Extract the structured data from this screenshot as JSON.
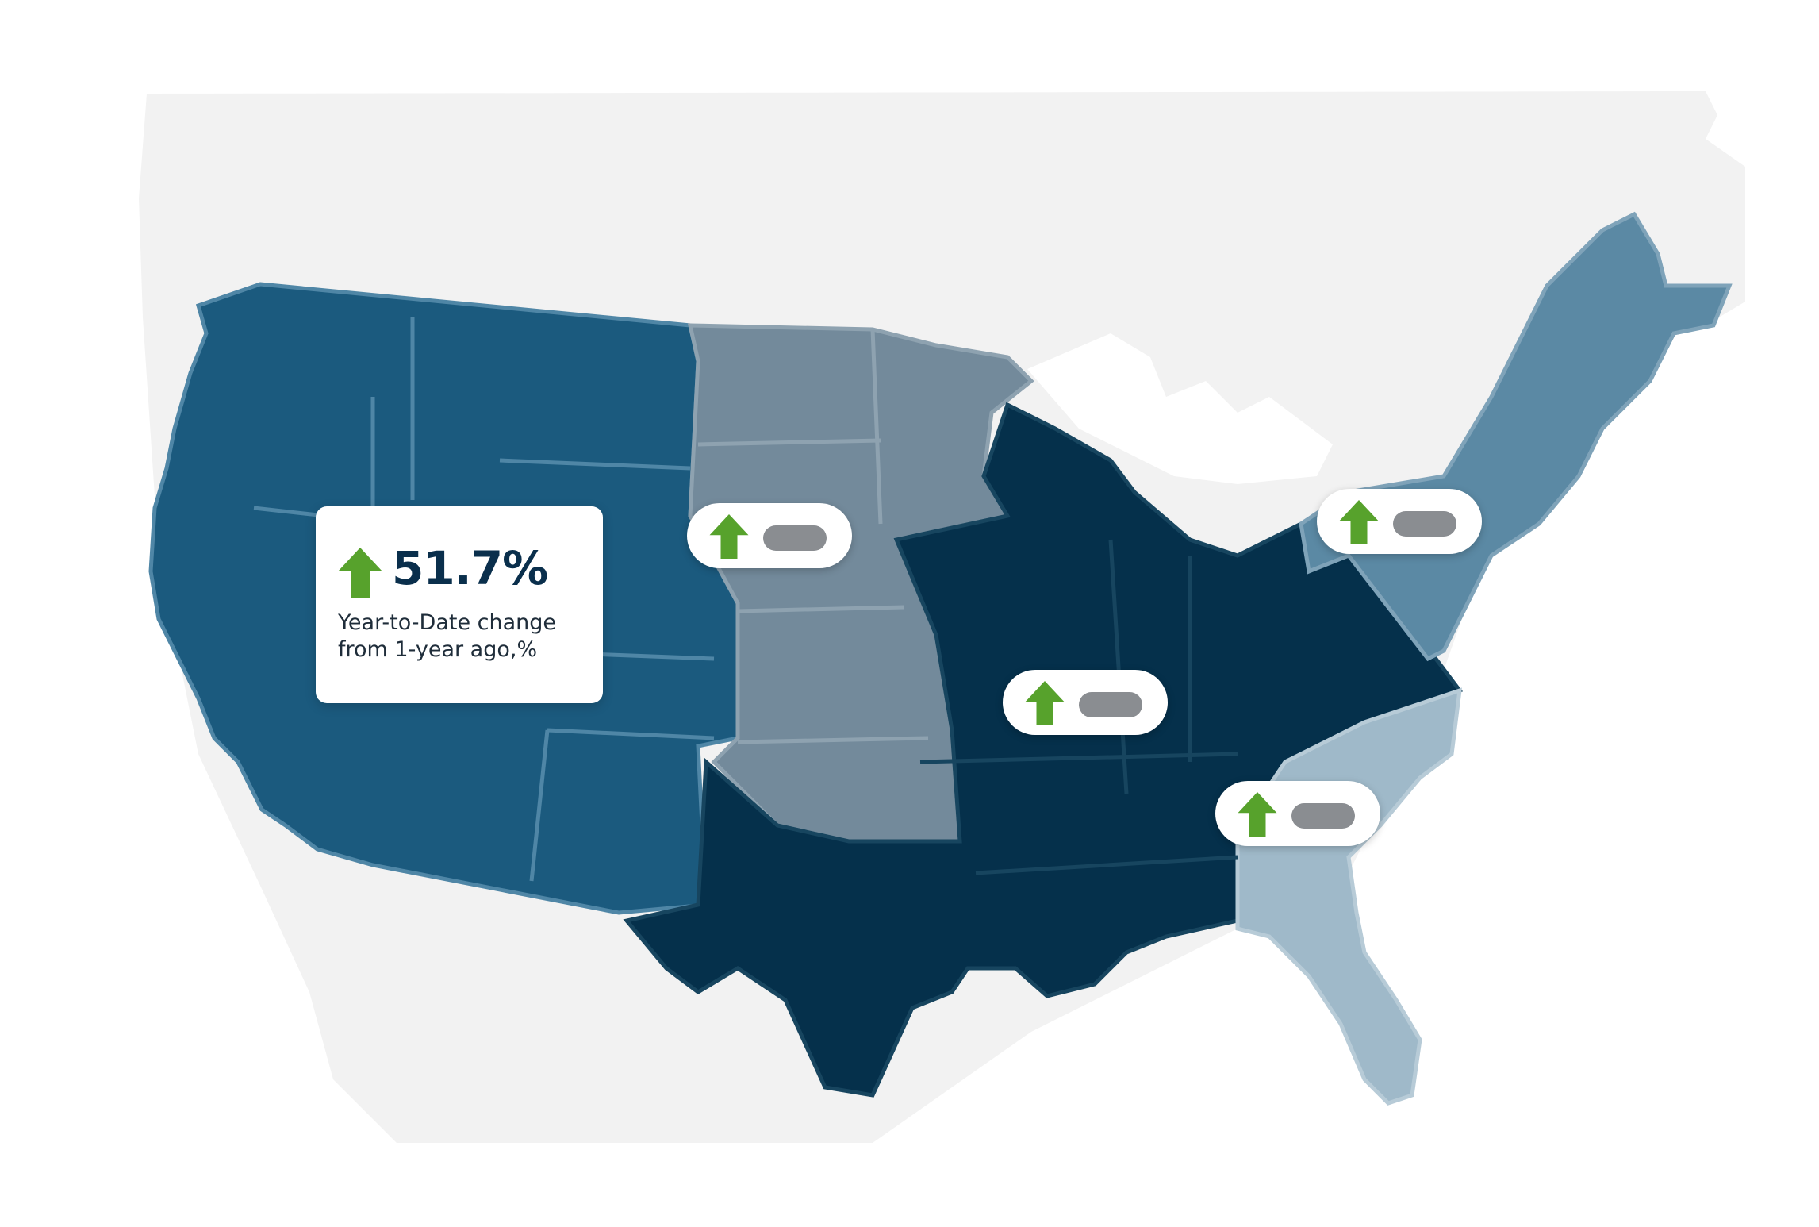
{
  "legend": {
    "value": "51.7%",
    "caption_line1": "Year-to-Date change",
    "caption_line2": "from 1-year ago,%",
    "trend": "up-arrow-icon"
  },
  "region_markers": [
    {
      "region": "midwest-north",
      "trend": "up-arrow-icon",
      "value_hidden": true
    },
    {
      "region": "northeast",
      "trend": "up-arrow-icon",
      "value_hidden": true
    },
    {
      "region": "central-south",
      "trend": "up-arrow-icon",
      "value_hidden": true
    },
    {
      "region": "southeast",
      "trend": "up-arrow-icon",
      "value_hidden": true
    }
  ],
  "colors": {
    "background_land": "#f2f2f2",
    "west": "#1b5a7e",
    "plains": "#738a9b",
    "central_south": "#05304b",
    "northeast": "#5b89a4",
    "southeast": "#9fb9c9",
    "arrow_green": "#57a22c",
    "value_text": "#0a2f4c"
  }
}
